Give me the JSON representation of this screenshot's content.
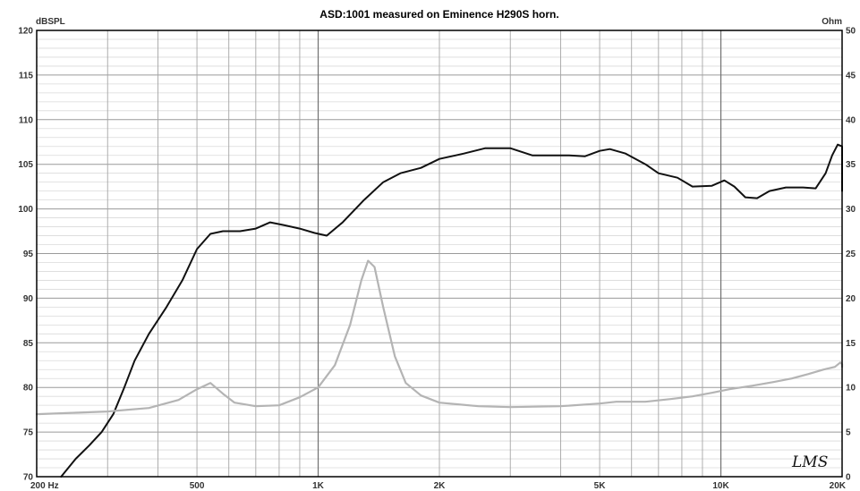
{
  "chart_data": {
    "type": "line",
    "title": "ASD:1001 measured on Eminence H290S horn.",
    "y_unit_left": "dBSPL",
    "y_unit_right": "Ohm",
    "x_scale": "log",
    "xlim": [
      200,
      20000
    ],
    "ylim_left": [
      70,
      120
    ],
    "ylim_right": [
      0,
      50
    ],
    "grid": true,
    "x_tick_labels": [
      {
        "value": 200,
        "label": "200  Hz"
      },
      {
        "value": 500,
        "label": "500"
      },
      {
        "value": 1000,
        "label": "1K"
      },
      {
        "value": 2000,
        "label": "2K"
      },
      {
        "value": 5000,
        "label": "5K"
      },
      {
        "value": 10000,
        "label": "10K"
      },
      {
        "value": 20000,
        "label": "20K"
      }
    ],
    "y_left_ticks": [
      70,
      75,
      80,
      85,
      90,
      95,
      100,
      105,
      110,
      115,
      120
    ],
    "y_right_ticks": [
      0,
      5,
      10,
      15,
      20,
      25,
      30,
      35,
      40,
      45,
      50
    ],
    "series": [
      {
        "axis": "left",
        "color": "#111111",
        "points": [
          [
            230,
            70
          ],
          [
            250,
            72
          ],
          [
            270,
            73.5
          ],
          [
            290,
            75
          ],
          [
            310,
            77
          ],
          [
            330,
            80
          ],
          [
            350,
            83
          ],
          [
            380,
            86
          ],
          [
            420,
            89
          ],
          [
            460,
            92
          ],
          [
            500,
            95.5
          ],
          [
            540,
            97.2
          ],
          [
            580,
            97.5
          ],
          [
            640,
            97.5
          ],
          [
            700,
            97.8
          ],
          [
            760,
            98.5
          ],
          [
            820,
            98.2
          ],
          [
            900,
            97.8
          ],
          [
            980,
            97.3
          ],
          [
            1050,
            97
          ],
          [
            1150,
            98.5
          ],
          [
            1300,
            101
          ],
          [
            1450,
            103
          ],
          [
            1600,
            104
          ],
          [
            1800,
            104.6
          ],
          [
            2000,
            105.6
          ],
          [
            2300,
            106.2
          ],
          [
            2600,
            106.8
          ],
          [
            3000,
            106.8
          ],
          [
            3400,
            106
          ],
          [
            3800,
            106
          ],
          [
            4200,
            106
          ],
          [
            4600,
            105.9
          ],
          [
            5000,
            106.5
          ],
          [
            5300,
            106.7
          ],
          [
            5800,
            106.2
          ],
          [
            6500,
            105
          ],
          [
            7000,
            104
          ],
          [
            7800,
            103.5
          ],
          [
            8500,
            102.5
          ],
          [
            9500,
            102.6
          ],
          [
            10200,
            103.2
          ],
          [
            10800,
            102.5
          ],
          [
            11500,
            101.3
          ],
          [
            12300,
            101.2
          ],
          [
            13200,
            102
          ],
          [
            14500,
            102.4
          ],
          [
            16000,
            102.4
          ],
          [
            17200,
            102.3
          ],
          [
            18200,
            104
          ],
          [
            18900,
            106
          ],
          [
            19500,
            107.2
          ],
          [
            20000,
            107
          ],
          [
            20600,
            106.5
          ],
          [
            21000,
            104.5
          ],
          [
            21300,
            102
          ]
        ]
      },
      {
        "axis": "right",
        "color": "#b4b4b4",
        "points": [
          [
            200,
            7
          ],
          [
            300,
            7.3
          ],
          [
            380,
            7.7
          ],
          [
            450,
            8.6
          ],
          [
            500,
            9.8
          ],
          [
            540,
            10.5
          ],
          [
            580,
            9.3
          ],
          [
            620,
            8.3
          ],
          [
            700,
            7.9
          ],
          [
            800,
            8
          ],
          [
            900,
            8.9
          ],
          [
            1000,
            10
          ],
          [
            1100,
            12.5
          ],
          [
            1200,
            17
          ],
          [
            1280,
            22
          ],
          [
            1330,
            24.2
          ],
          [
            1380,
            23.5
          ],
          [
            1450,
            19
          ],
          [
            1550,
            13.5
          ],
          [
            1650,
            10.5
          ],
          [
            1800,
            9.1
          ],
          [
            2000,
            8.3
          ],
          [
            2500,
            7.9
          ],
          [
            3000,
            7.8
          ],
          [
            4000,
            7.9
          ],
          [
            5000,
            8.2
          ],
          [
            5500,
            8.4
          ],
          [
            6500,
            8.4
          ],
          [
            7500,
            8.7
          ],
          [
            8500,
            9
          ],
          [
            9500,
            9.4
          ],
          [
            10500,
            9.8
          ],
          [
            12000,
            10.2
          ],
          [
            13500,
            10.6
          ],
          [
            15000,
            11
          ],
          [
            16500,
            11.5
          ],
          [
            18000,
            12
          ],
          [
            19200,
            12.3
          ],
          [
            19800,
            12.8
          ],
          [
            20400,
            12.6
          ],
          [
            21000,
            12.3
          ]
        ]
      }
    ]
  }
}
